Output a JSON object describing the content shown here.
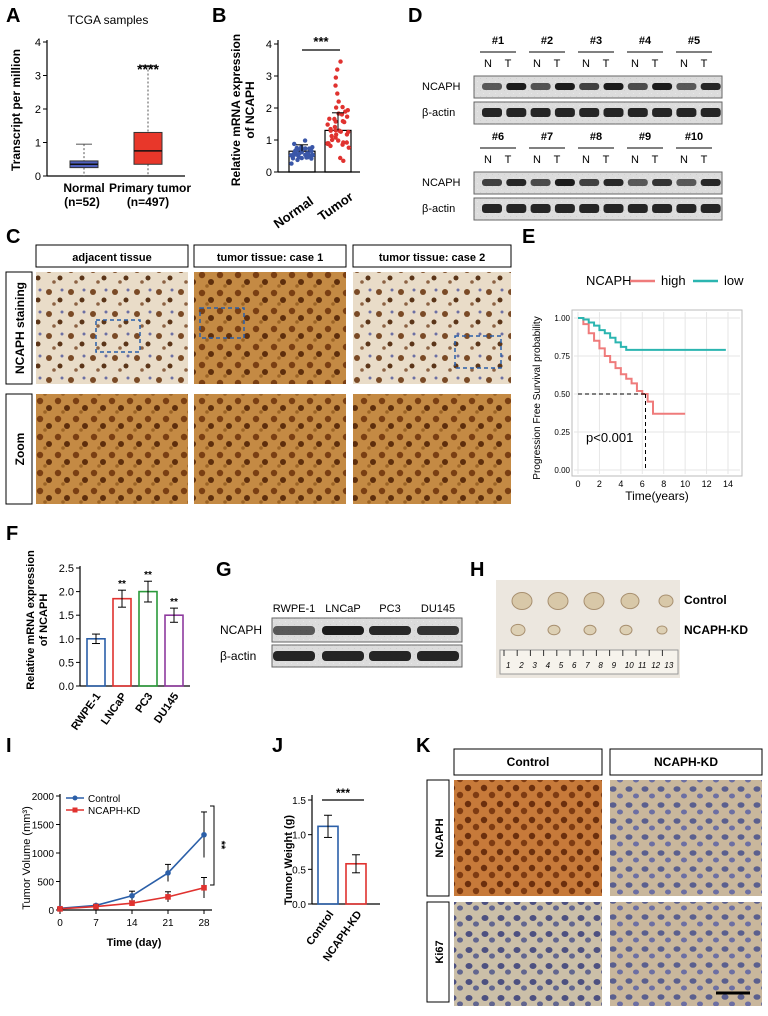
{
  "panel_letters": [
    "A",
    "B",
    "D",
    "C",
    "E",
    "F",
    "G",
    "H",
    "I",
    "J",
    "K"
  ],
  "colors": {
    "normal_box": "#4f5fbd",
    "tumor_box": "#e8372a",
    "red": "#e0322f",
    "blue": "#2b5fa8",
    "green": "#2a9a3a",
    "purple": "#8e3a9e",
    "high": "#ef7b7b",
    "low": "#2bb5b0"
  },
  "A": {
    "title": "TCGA samples",
    "ylabel": "Transcript per million",
    "sig": "****",
    "group_labels": [
      "Normal",
      "Primary tumor"
    ],
    "group_counts": [
      "(n=52)",
      "(n=497)"
    ],
    "chart_data": {
      "type": "box",
      "categories": [
        "Normal",
        "Primary tumor"
      ],
      "ylim": [
        0,
        4
      ],
      "yticks": [
        "0",
        "1",
        "2",
        "3",
        "4"
      ],
      "boxes": [
        {
          "name": "Normal",
          "min": 0,
          "q1": 0.25,
          "median": 0.35,
          "q3": 0.45,
          "max": 0.95
        },
        {
          "name": "Primary tumor",
          "min": 0,
          "q1": 0.35,
          "median": 0.75,
          "q3": 1.3,
          "max": 3.3
        }
      ]
    }
  },
  "B": {
    "ylabel": "Relative mRNA  expression\nof NCAPH",
    "sig": "***",
    "chart_data": {
      "type": "scatter",
      "categories": [
        "Normal",
        "Tumor"
      ],
      "ylim": [
        0,
        4
      ],
      "yticks": [
        "0",
        "1",
        "2",
        "3",
        "4"
      ],
      "means": [
        0.65,
        1.3
      ],
      "sd": [
        0.2,
        0.55
      ]
    }
  },
  "D": {
    "row1_samples": [
      "#1",
      "#2",
      "#3",
      "#4",
      "#5"
    ],
    "row2_samples": [
      "#6",
      "#7",
      "#8",
      "#9",
      "#10"
    ],
    "nt": [
      "N",
      "T"
    ],
    "bands": [
      "NCAPH",
      "β-actin"
    ]
  },
  "C": {
    "col_headers": [
      "adjacent tissue",
      "tumor tissue: case 1",
      "tumor tissue: case 2"
    ],
    "row_labels": [
      "NCAPH  staining",
      "Zoom"
    ]
  },
  "E": {
    "legend_title": "NCAPH",
    "legend": [
      "high",
      "low"
    ],
    "ylabel": "Progression Free Survival probability",
    "xlabel": "Time(years)",
    "pvalue": "p<0.001",
    "chart_data": {
      "type": "line",
      "xlim": [
        0,
        14
      ],
      "ylim": [
        0,
        1
      ],
      "xticks": [
        "0",
        "2",
        "4",
        "6",
        "8",
        "10",
        "12",
        "14"
      ],
      "yticks": [
        "0.00",
        "0.25",
        "0.50",
        "0.75",
        "1.00"
      ],
      "series": [
        {
          "name": "high",
          "x": [
            0,
            0.5,
            1,
            1.5,
            2,
            2.5,
            3,
            3.5,
            4,
            4.5,
            5,
            5.5,
            6,
            6.5,
            7,
            10
          ],
          "y": [
            1,
            0.96,
            0.9,
            0.85,
            0.8,
            0.75,
            0.71,
            0.67,
            0.63,
            0.6,
            0.57,
            0.52,
            0.5,
            0.45,
            0.37,
            0.37
          ]
        },
        {
          "name": "low",
          "x": [
            0,
            0.5,
            1,
            1.5,
            2,
            2.5,
            3,
            3.5,
            4,
            4.5,
            5,
            13.8
          ],
          "y": [
            1,
            0.99,
            0.97,
            0.95,
            0.92,
            0.9,
            0.87,
            0.84,
            0.81,
            0.79,
            0.79,
            0.79
          ]
        }
      ]
    }
  },
  "F": {
    "ylabel": "Relative mRNA expression\nof NCAPH",
    "chart_data": {
      "type": "bar",
      "categories": [
        "RWPE-1",
        "LNCaP",
        "PC3",
        "DU145"
      ],
      "values": [
        1.0,
        1.85,
        2.0,
        1.5
      ],
      "errors": [
        0.1,
        0.18,
        0.22,
        0.15
      ],
      "sig": [
        "",
        "**",
        "**",
        "**"
      ],
      "ylim": [
        0,
        2.5
      ],
      "yticks": [
        "0.0",
        "0.5",
        "1.0",
        "1.5",
        "2.0",
        "2.5"
      ]
    }
  },
  "G": {
    "lanes": [
      "RWPE-1",
      "LNCaP",
      "PC3",
      "DU145"
    ],
    "bands": [
      "NCAPH",
      "β-actin"
    ]
  },
  "H": {
    "row_labels": [
      "Control",
      "NCAPH-KD"
    ],
    "ruler": [
      "1",
      "2",
      "3",
      "4",
      "5",
      "6",
      "7",
      "8",
      "9",
      "10",
      "11",
      "12",
      "13"
    ]
  },
  "I": {
    "ylabel": "Tumor Volume (mm³)",
    "xlabel": "Time (day)",
    "legend": [
      "Control",
      "NCAPH-KD"
    ],
    "sig": "**",
    "chart_data": {
      "type": "line",
      "x": [
        0,
        7,
        14,
        21,
        28
      ],
      "xticks": [
        "0",
        "7",
        "14",
        "21",
        "28"
      ],
      "ylim": [
        0,
        2000
      ],
      "yticks": [
        "0",
        "500",
        "1000",
        "1500",
        "2000"
      ],
      "series": [
        {
          "name": "Control",
          "values": [
            30,
            80,
            250,
            650,
            1320
          ],
          "errors": [
            10,
            20,
            80,
            150,
            400
          ]
        },
        {
          "name": "NCAPH-KD",
          "values": [
            20,
            60,
            120,
            230,
            390
          ],
          "errors": [
            5,
            15,
            40,
            90,
            180
          ]
        }
      ]
    }
  },
  "J": {
    "ylabel": "Tumor Weight (g)",
    "sig": "***",
    "chart_data": {
      "type": "bar",
      "categories": [
        "Control",
        "NCAPH-KD"
      ],
      "values": [
        1.12,
        0.58
      ],
      "errors": [
        0.16,
        0.13
      ],
      "ylim": [
        0,
        1.5
      ],
      "yticks": [
        "0.0",
        "0.5",
        "1.0",
        "1.5"
      ]
    }
  },
  "K": {
    "col_headers": [
      "Control",
      "NCAPH-KD"
    ],
    "row_labels": [
      "NCAPH",
      "Ki67"
    ]
  }
}
